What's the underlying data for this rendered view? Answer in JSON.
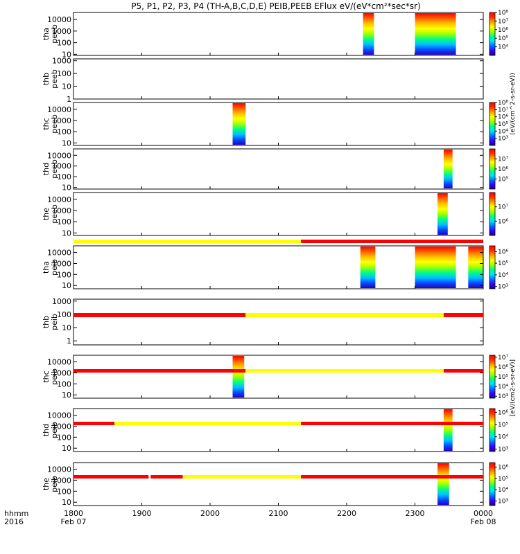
{
  "figure": {
    "title": "P5, P1, P2, P3, P4 (TH-A,B,C,D,E) PEIB,PEEB EFlux eV/(eV*cm²*sec*sr)",
    "time_header": "hhmm",
    "year": "2016",
    "start_date": "Feb 07",
    "end_date": "Feb 08",
    "colorbar_labels": {
      "peeb": "(eV/(cm^2-s-sr-eV))",
      "peib": "[eV/(cm2-s-sr-eV)]"
    }
  },
  "colors": {
    "flag_yellow": "#ffff00",
    "flag_red": "#ff0000",
    "colorscale": [
      "#1a0080",
      "#3a00ff",
      "#0070ff",
      "#00e0ff",
      "#00ff80",
      "#a0ff00",
      "#ffff00",
      "#ffa000",
      "#ff3000",
      "#ff0000"
    ]
  },
  "chart_data": {
    "type": "heatmap",
    "x_axis": {
      "range": [
        "18:00",
        "24:00"
      ],
      "tick_labels": [
        "1800",
        "1900",
        "2000",
        "2100",
        "2200",
        "2300",
        "0000"
      ],
      "tick_hours": [
        18,
        19,
        20,
        21,
        22,
        23,
        24
      ]
    },
    "panels": [
      {
        "id": "tha_peeb",
        "ylabel": "tha",
        "ylabel2": "peeb",
        "yscale": "log",
        "ylim": [
          8,
          40000
        ],
        "yticks": [
          {
            "v": 10,
            "label": "10"
          },
          {
            "v": 100,
            "label": "100"
          },
          {
            "v": 1000,
            "label": "1000"
          },
          {
            "v": 10000,
            "label": "10000"
          }
        ],
        "colorbar": {
          "cb_min": 3,
          "cb_max": 8,
          "ticks": [
            {
              "v": 4,
              "label": "10⁴"
            },
            {
              "v": 5,
              "label": "10⁵"
            },
            {
              "v": 6,
              "label": "10⁶"
            },
            {
              "v": 7,
              "label": "10⁷"
            },
            {
              "v": 8,
              "label": "10⁸"
            }
          ]
        },
        "data_intervals": [
          [
            22.24,
            22.4
          ],
          [
            23.0,
            23.6
          ],
          [
            24.0,
            24.0
          ]
        ]
      },
      {
        "id": "thb_peeb",
        "ylabel": "thb",
        "ylabel2": "peeb",
        "yscale": "log",
        "ylim": [
          1,
          1400
        ],
        "yticks": [
          {
            "v": 1,
            "label": "1"
          },
          {
            "v": 10,
            "label": "10"
          },
          {
            "v": 100,
            "label": "100"
          },
          {
            "v": 1000,
            "label": "1000"
          }
        ],
        "colorbar": null,
        "data_intervals": []
      },
      {
        "id": "thc_peeb",
        "ylabel": "thc",
        "ylabel2": "peeb",
        "yscale": "log",
        "ylim": [
          6,
          40000
        ],
        "yticks": [
          {
            "v": 10,
            "label": "10"
          },
          {
            "v": 100,
            "label": "100"
          },
          {
            "v": 1000,
            "label": "1000"
          },
          {
            "v": 10000,
            "label": "10000"
          }
        ],
        "colorbar": {
          "cb_min": 2,
          "cb_max": 8,
          "ticks": [
            {
              "v": 3,
              "label": "10³"
            },
            {
              "v": 4,
              "label": "10⁴"
            },
            {
              "v": 5,
              "label": "10⁵"
            },
            {
              "v": 6,
              "label": "10⁶"
            },
            {
              "v": 7,
              "label": "10⁷"
            },
            {
              "v": 8,
              "label": "10⁸"
            }
          ]
        },
        "data_intervals": [
          [
            20.33,
            20.52
          ]
        ]
      },
      {
        "id": "thd_peeb",
        "ylabel": "thd",
        "ylabel2": "peeb",
        "yscale": "log",
        "ylim": [
          7,
          40000
        ],
        "yticks": [
          {
            "v": 10,
            "label": "10"
          },
          {
            "v": 100,
            "label": "100"
          },
          {
            "v": 1000,
            "label": "1000"
          },
          {
            "v": 10000,
            "label": "10000"
          }
        ],
        "colorbar": {
          "cb_min": 4,
          "cb_max": 8,
          "ticks": [
            {
              "v": 5,
              "label": "10⁵"
            },
            {
              "v": 6,
              "label": "10⁶"
            },
            {
              "v": 7,
              "label": "10⁷"
            }
          ]
        },
        "data_intervals": [
          [
            23.42,
            23.55
          ]
        ]
      },
      {
        "id": "the_peeb",
        "ylabel": "the",
        "ylabel2": "peeb",
        "yscale": "log",
        "ylim": [
          6,
          40000
        ],
        "yticks": [
          {
            "v": 10,
            "label": "10"
          },
          {
            "v": 100,
            "label": "100"
          },
          {
            "v": 1000,
            "label": "1000"
          },
          {
            "v": 10000,
            "label": "10000"
          }
        ],
        "colorbar": {
          "cb_min": 5,
          "cb_max": 8,
          "ticks": [
            {
              "v": 6,
              "label": "10⁶"
            },
            {
              "v": 7,
              "label": "10⁷"
            }
          ]
        },
        "data_intervals": [
          [
            23.33,
            23.48
          ]
        ]
      },
      {
        "id": "tha_peib",
        "ylabel": "tha",
        "ylabel2": "peib",
        "yscale": "log",
        "ylim": [
          5,
          40000
        ],
        "yticks": [
          {
            "v": 10,
            "label": "10"
          },
          {
            "v": 100,
            "label": "100"
          },
          {
            "v": 1000,
            "label": "1000"
          },
          {
            "v": 10000,
            "label": "10000"
          }
        ],
        "colorbar": {
          "cb_min": 2.8,
          "cb_max": 6.5,
          "ticks": [
            {
              "v": 3,
              "label": "10³"
            },
            {
              "v": 4,
              "label": "10⁴"
            },
            {
              "v": 5,
              "label": "10⁵"
            },
            {
              "v": 6,
              "label": "10⁶"
            }
          ]
        },
        "data_intervals": [
          [
            22.2,
            22.42
          ],
          [
            23.0,
            23.6
          ],
          [
            23.78,
            24.0
          ]
        ],
        "flag_bar": [
          {
            "from": 18.0,
            "to": 21.33,
            "color": "yellow"
          },
          {
            "from": 21.33,
            "to": 24.0,
            "color": "red"
          }
        ]
      },
      {
        "id": "thb_peib",
        "ylabel": "thb",
        "ylabel2": "peib",
        "yscale": "log",
        "ylim": [
          0.5,
          1400
        ],
        "yticks": [
          {
            "v": 1,
            "label": "1"
          },
          {
            "v": 10,
            "label": "10"
          },
          {
            "v": 100,
            "label": "100"
          },
          {
            "v": 1000,
            "label": "1000"
          }
        ],
        "colorbar": null,
        "data_intervals": [],
        "flag_bar": [
          {
            "from": 18.0,
            "to": 20.52,
            "color": "red"
          },
          {
            "from": 20.52,
            "to": 23.42,
            "color": "yellow"
          },
          {
            "from": 23.42,
            "to": 24.0,
            "color": "red"
          }
        ]
      },
      {
        "id": "thc_peib",
        "ylabel": "thc",
        "ylabel2": "peib",
        "yscale": "log",
        "ylim": [
          5,
          40000
        ],
        "yticks": [
          {
            "v": 10,
            "label": "10"
          },
          {
            "v": 100,
            "label": "100"
          },
          {
            "v": 1000,
            "label": "1000"
          },
          {
            "v": 10000,
            "label": "10000"
          }
        ],
        "colorbar": {
          "cb_min": 2.8,
          "cb_max": 7.2,
          "ticks": [
            {
              "v": 3,
              "label": "10³"
            },
            {
              "v": 4,
              "label": "10⁴"
            },
            {
              "v": 5,
              "label": "10⁵"
            },
            {
              "v": 6,
              "label": "10⁶"
            },
            {
              "v": 7,
              "label": "10⁷"
            }
          ]
        },
        "data_intervals": [
          [
            20.33,
            20.5
          ]
        ],
        "flag_bar": [
          {
            "from": 18.0,
            "to": 20.52,
            "color": "red"
          },
          {
            "from": 20.52,
            "to": 23.42,
            "color": "yellow"
          },
          {
            "from": 23.42,
            "to": 24.0,
            "color": "red"
          }
        ]
      },
      {
        "id": "thd_peib",
        "ylabel": "thd",
        "ylabel2": "peib",
        "yscale": "log",
        "ylim": [
          5,
          40000
        ],
        "yticks": [
          {
            "v": 10,
            "label": "10"
          },
          {
            "v": 100,
            "label": "100"
          },
          {
            "v": 1000,
            "label": "1000"
          },
          {
            "v": 10000,
            "label": "10000"
          }
        ],
        "colorbar": {
          "cb_min": 2.8,
          "cb_max": 6.3,
          "ticks": [
            {
              "v": 3,
              "label": "10³"
            },
            {
              "v": 4,
              "label": "10⁴"
            },
            {
              "v": 5,
              "label": "10⁵"
            },
            {
              "v": 6,
              "label": "10⁶"
            }
          ]
        },
        "data_intervals": [
          [
            23.42,
            23.55
          ]
        ],
        "flag_bar": [
          {
            "from": 18.0,
            "to": 18.6,
            "color": "red"
          },
          {
            "from": 18.6,
            "to": 21.33,
            "color": "yellow"
          },
          {
            "from": 21.33,
            "to": 24.0,
            "color": "red"
          }
        ]
      },
      {
        "id": "the_peib",
        "ylabel": "the",
        "ylabel2": "peib",
        "yscale": "log",
        "ylim": [
          5,
          40000
        ],
        "yticks": [
          {
            "v": 10,
            "label": "10"
          },
          {
            "v": 100,
            "label": "100"
          },
          {
            "v": 1000,
            "label": "1000"
          },
          {
            "v": 10000,
            "label": "10000"
          }
        ],
        "colorbar": {
          "cb_min": 2.6,
          "cb_max": 6.4,
          "ticks": [
            {
              "v": 3,
              "label": "10³"
            },
            {
              "v": 4,
              "label": "10⁴"
            },
            {
              "v": 5,
              "label": "10⁵"
            },
            {
              "v": 6,
              "label": "10⁶"
            }
          ]
        },
        "data_intervals": [
          [
            23.33,
            23.5
          ]
        ],
        "flag_bar": [
          {
            "from": 18.0,
            "to": 19.1,
            "color": "red"
          },
          {
            "from": 19.13,
            "to": 19.6,
            "color": "red"
          },
          {
            "from": 19.6,
            "to": 21.33,
            "color": "yellow"
          },
          {
            "from": 21.33,
            "to": 24.0,
            "color": "red"
          }
        ]
      }
    ]
  }
}
